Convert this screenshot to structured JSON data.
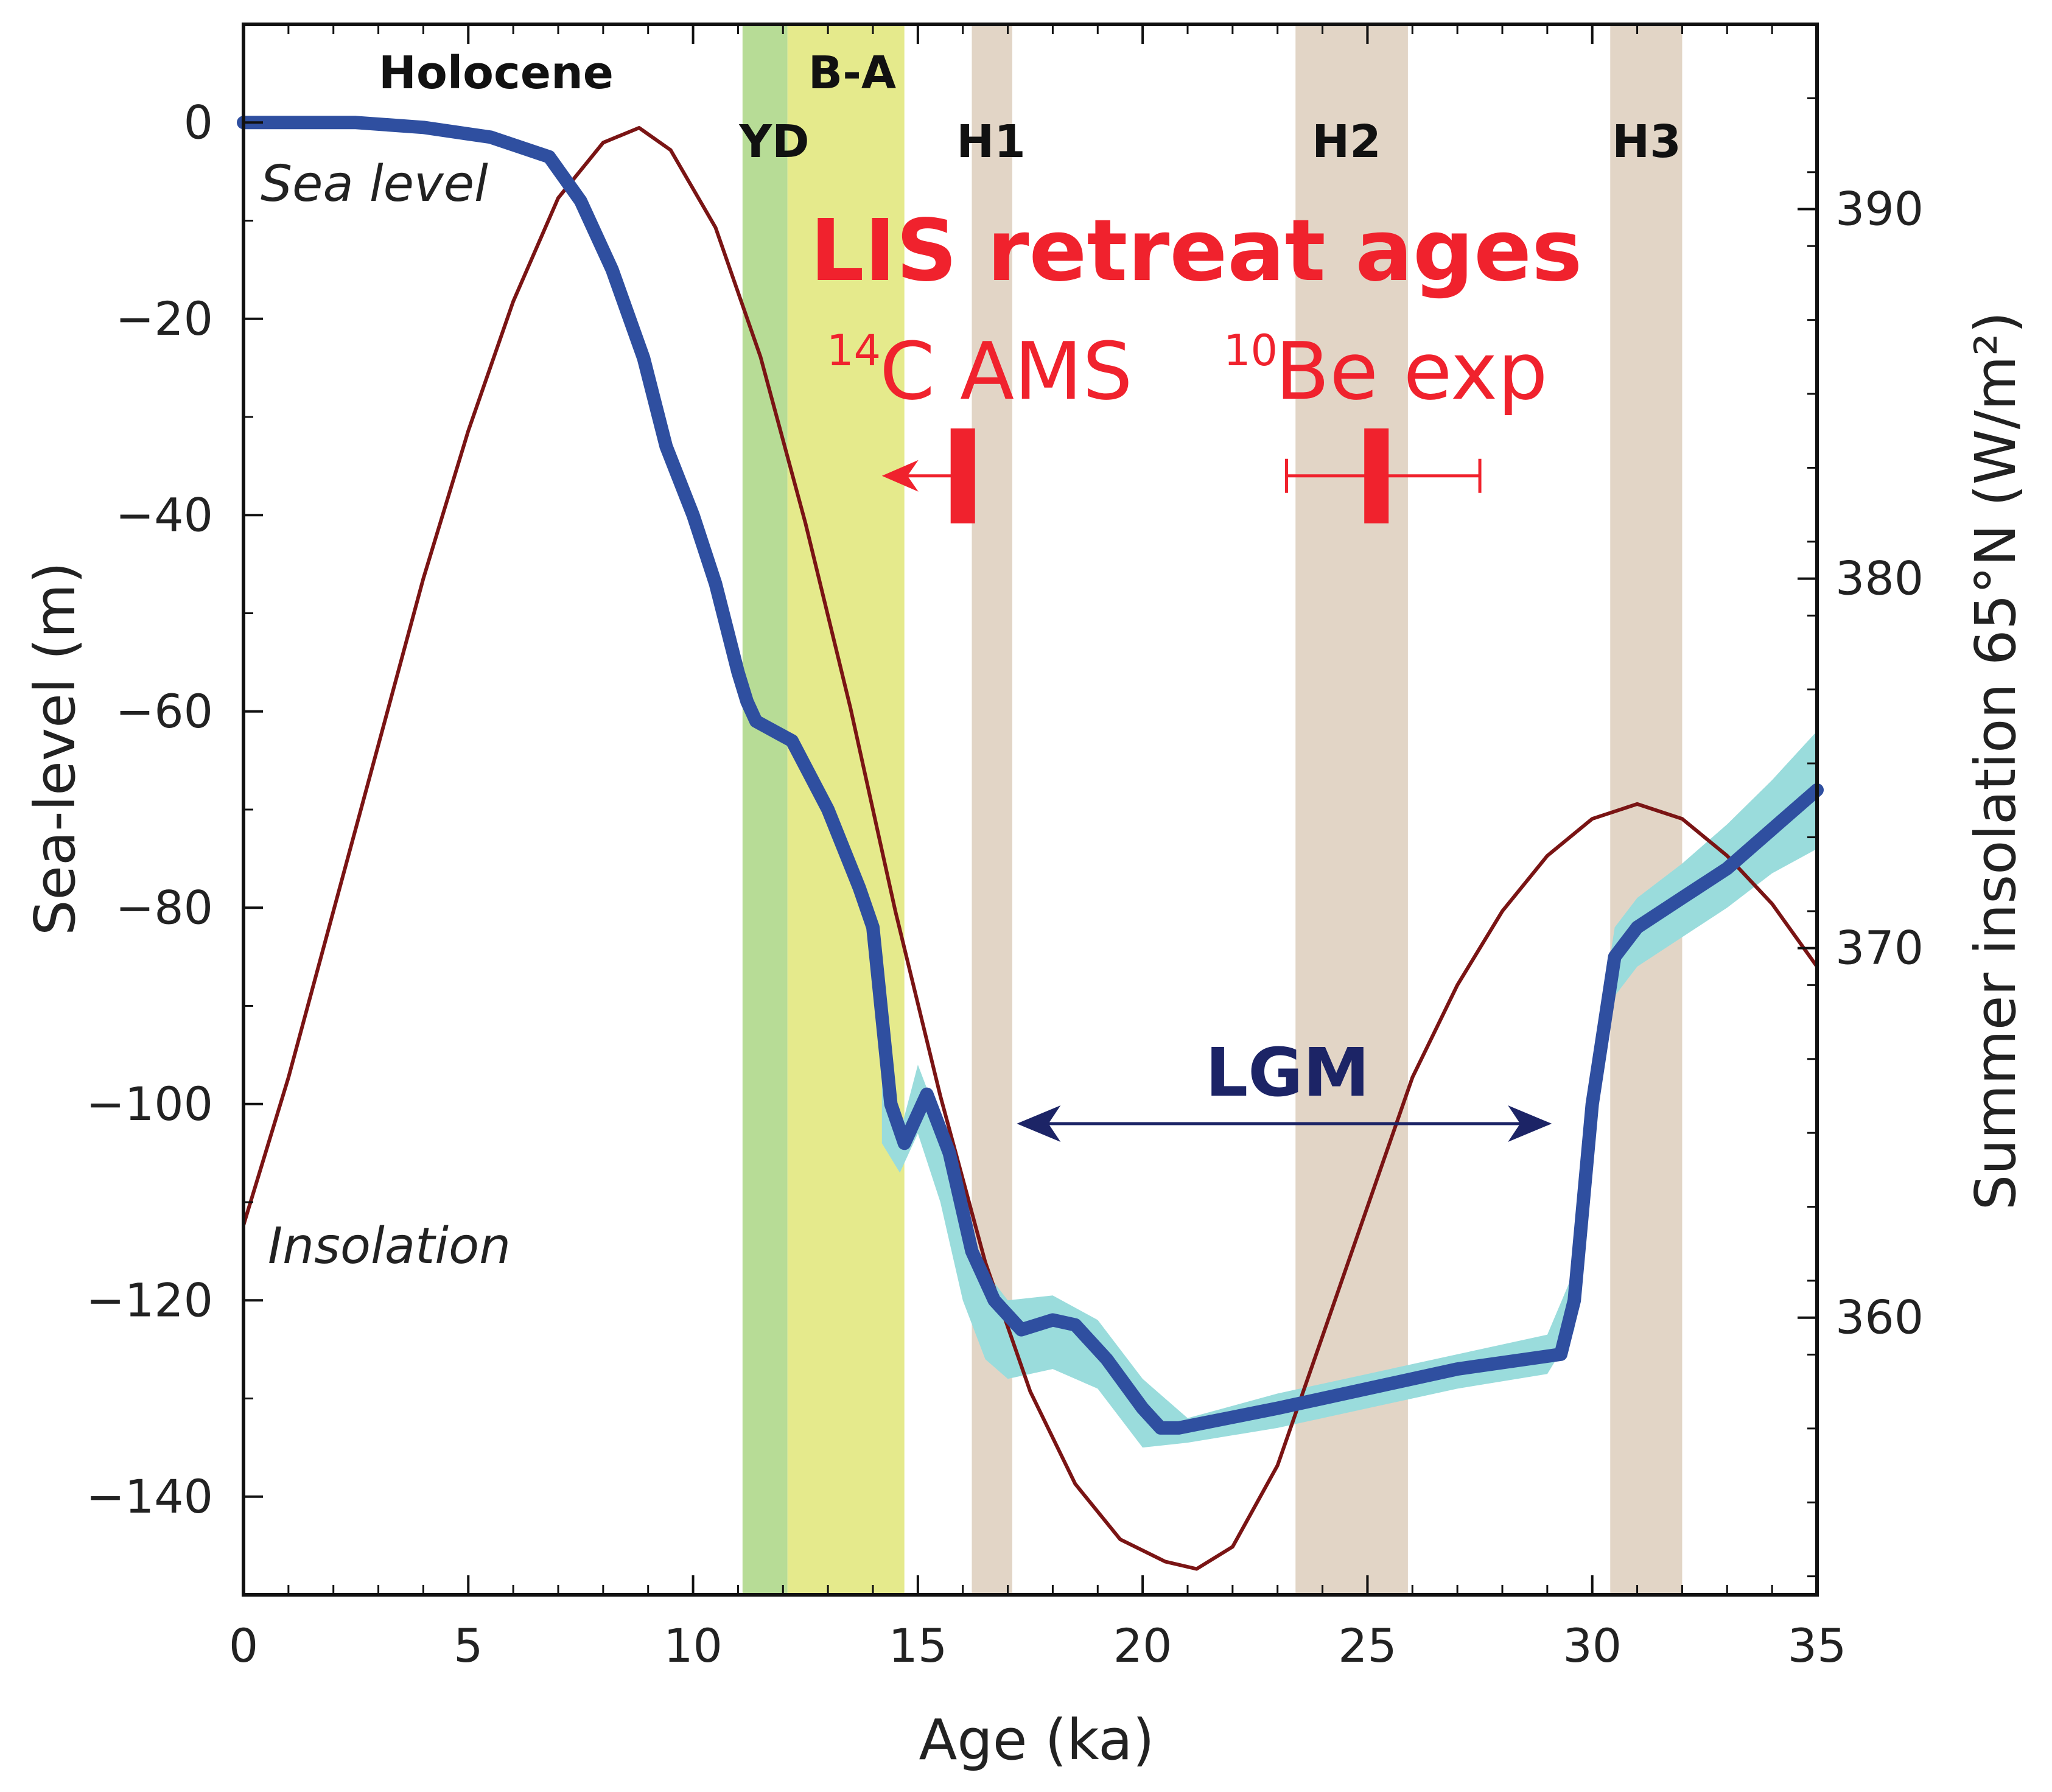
{
  "chart_data": {
    "type": "line",
    "title": "",
    "xlabel": "Age (ka)",
    "ylabel": "Sea-level (m)",
    "y2label": "Summer insolation 65°N (W/m²)",
    "xlim": [
      0,
      35
    ],
    "ylim": [
      -150,
      10
    ],
    "y2lim": [
      352.5,
      395
    ],
    "xticks": [
      0,
      5,
      10,
      15,
      20,
      25,
      30,
      35
    ],
    "yticks": [
      0,
      -20,
      -40,
      -60,
      -80,
      -100,
      -120,
      -140
    ],
    "y2ticks": [
      390,
      380,
      370,
      360
    ],
    "series": [
      {
        "name": "Sea level",
        "axis": "left",
        "color": "#2f4fa0",
        "x": [
          0,
          1,
          2.5,
          4,
          5.5,
          6.8,
          7.5,
          8.2,
          8.9,
          9.4,
          10,
          10.5,
          11,
          11.2,
          11.4,
          11.8,
          12.2,
          13,
          13.7,
          14,
          14.4,
          14.7,
          15.2,
          15.7,
          16.2,
          16.7,
          17.3,
          18,
          18.5,
          19.2,
          20,
          20.4,
          20.8,
          23,
          25,
          27,
          29.3,
          29.6,
          30,
          30.5,
          31,
          32,
          33,
          34,
          35
        ],
        "values": [
          0,
          0,
          0,
          -0.5,
          -1.5,
          -3.5,
          -8,
          -15,
          -24,
          -33,
          -40,
          -47,
          -56,
          -59,
          -61,
          -62,
          -63,
          -70,
          -78,
          -82,
          -100,
          -104,
          -99,
          -105,
          -115,
          -120,
          -123,
          -122,
          -122.5,
          -126,
          -131,
          -133,
          -133,
          -131,
          -129,
          -127,
          -125.5,
          -120,
          -100,
          -85,
          -82,
          -79,
          -76,
          -72,
          -68
        ]
      },
      {
        "name": "Sea level uncertainty band",
        "axis": "left",
        "color": "#9adcdc",
        "x": [
          14.2,
          14.6,
          15,
          15.5,
          16,
          16.5,
          17,
          18,
          19,
          20,
          21,
          23,
          25,
          27,
          29,
          29.6,
          30,
          30.5,
          31,
          32,
          33,
          34,
          35
        ],
        "upper": [
          -98,
          -103,
          -96,
          -102,
          -111,
          -117,
          -120,
          -119.5,
          -122,
          -128,
          -132,
          -129.5,
          -127.5,
          -125.5,
          -123.5,
          -117,
          -97,
          -82,
          -79,
          -75.5,
          -71.5,
          -67,
          -62
        ],
        "lower": [
          -104,
          -107,
          -103,
          -110,
          -120,
          -126,
          -128,
          -127,
          -129,
          -135,
          -134.5,
          -133,
          -131,
          -129,
          -127.5,
          -123,
          -103,
          -89,
          -86,
          -83,
          -80,
          -76.5,
          -74
        ]
      },
      {
        "name": "Insolation",
        "axis": "right",
        "color": "#7a1414",
        "x": [
          0,
          1,
          2,
          3,
          4,
          5,
          6,
          7,
          8,
          8.8,
          9.5,
          10.5,
          11.5,
          12.5,
          13.5,
          14.5,
          15.5,
          16.5,
          17.5,
          18.5,
          19.5,
          20.5,
          21.2,
          22,
          23,
          24,
          25,
          26,
          27,
          28,
          29,
          30,
          31,
          32,
          33,
          34,
          35
        ],
        "values": [
          362.5,
          366.5,
          371,
          375.5,
          380,
          384,
          387.5,
          390.3,
          391.8,
          392.2,
          391.6,
          389.5,
          386,
          381.5,
          376.5,
          371,
          366,
          361.5,
          358,
          355.5,
          354,
          353.4,
          353.2,
          353.8,
          356,
          359.5,
          363,
          366.5,
          369,
          371,
          372.5,
          373.5,
          373.9,
          373.5,
          372.5,
          371.2,
          369.5
        ]
      }
    ],
    "shaded_periods": [
      {
        "label": "YD",
        "start": 11.1,
        "end": 12.1,
        "color": "#b7dc96"
      },
      {
        "label": "B-A",
        "start": 12.1,
        "end": 14.7,
        "color": "#e5ea8c"
      },
      {
        "label": "H1",
        "start": 16.2,
        "end": 17.1,
        "color": "#e2d5c6"
      },
      {
        "label": "H2",
        "start": 23.4,
        "end": 25.9,
        "color": "#e2d5c6"
      },
      {
        "label": "H3",
        "start": 30.4,
        "end": 32.0,
        "color": "#e2d5c6"
      }
    ],
    "period_labels": {
      "holocene": "Holocene",
      "yd": "YD",
      "ba": "B-A",
      "h1": "H1",
      "h2": "H2",
      "h3": "H3"
    },
    "curve_labels": {
      "sea_level": "Sea level",
      "insolation": "Insolation"
    },
    "annotations": {
      "retreat_title": "LIS retreat ages",
      "c14_sup": "14",
      "c14_text": "C AMS",
      "be10_sup": "10",
      "be10_text": "Be exp",
      "lgm": "LGM"
    },
    "retreat_ages": [
      {
        "method": "14C AMS",
        "age": 16.0,
        "open_ended_younger": true,
        "arrow_to": 14.2,
        "sea_level": -36
      },
      {
        "method": "10Be exp",
        "age": 25.2,
        "err_minus": 2.0,
        "err_plus": 2.3,
        "sea_level": -36
      }
    ],
    "lgm_span": {
      "start": 17.2,
      "end": 29.1,
      "sea_level": -102
    },
    "colors": {
      "sea_level": "#2f4fa0",
      "band": "#9adcdc",
      "insolation": "#7a1414",
      "retreat": "#f0222d",
      "lgm": "#1c2466"
    }
  }
}
